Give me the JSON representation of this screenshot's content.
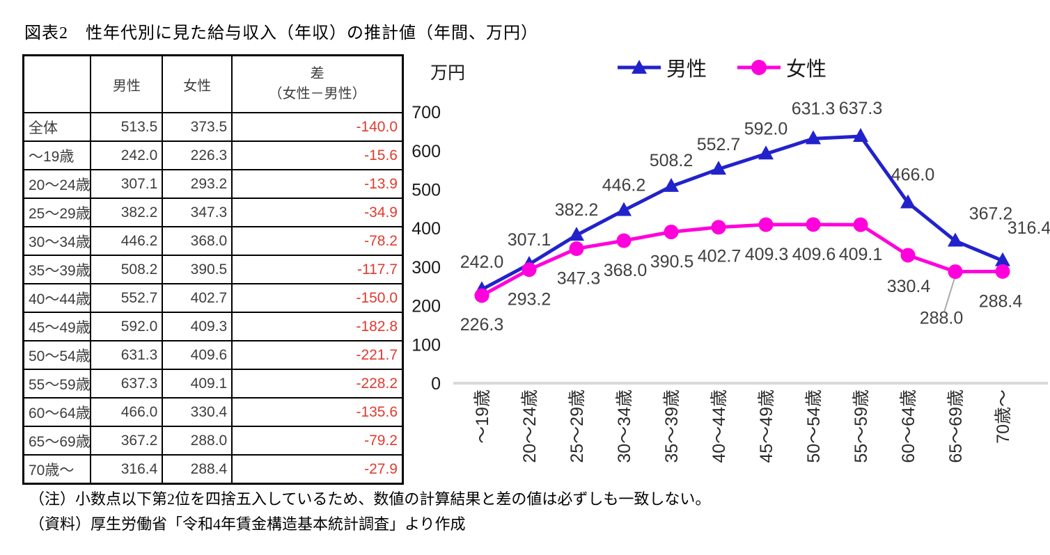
{
  "title": "図表2　性年代別に見た給与収入（年収）の推計値（年間、万円）",
  "colors": {
    "male": "#2222CC",
    "female": "#FF00DD",
    "diff_negative": "#E23A2E",
    "axis_line": "#D9D9D9",
    "leader_line": "#AAAAAA",
    "chart_text": "#404040",
    "table_text": "#3D3D3D"
  },
  "table": {
    "header": {
      "corner": "",
      "male": "男性",
      "female": "女性",
      "diff_line1": "差",
      "diff_line2": "（女性－男性）"
    },
    "rows": [
      {
        "label": "全体",
        "male": "513.5",
        "female": "373.5",
        "diff": "-140.0"
      },
      {
        "label": "～19歳",
        "male": "242.0",
        "female": "226.3",
        "diff": "-15.6"
      },
      {
        "label": "20～24歳",
        "male": "307.1",
        "female": "293.2",
        "diff": "-13.9"
      },
      {
        "label": "25～29歳",
        "male": "382.2",
        "female": "347.3",
        "diff": "-34.9"
      },
      {
        "label": "30～34歳",
        "male": "446.2",
        "female": "368.0",
        "diff": "-78.2"
      },
      {
        "label": "35～39歳",
        "male": "508.2",
        "female": "390.5",
        "diff": "-117.7"
      },
      {
        "label": "40～44歳",
        "male": "552.7",
        "female": "402.7",
        "diff": "-150.0"
      },
      {
        "label": "45～49歳",
        "male": "592.0",
        "female": "409.3",
        "diff": "-182.8"
      },
      {
        "label": "50～54歳",
        "male": "631.3",
        "female": "409.6",
        "diff": "-221.7"
      },
      {
        "label": "55～59歳",
        "male": "637.3",
        "female": "409.1",
        "diff": "-228.2"
      },
      {
        "label": "60～64歳",
        "male": "466.0",
        "female": "330.4",
        "diff": "-135.6"
      },
      {
        "label": "65～69歳",
        "male": "367.2",
        "female": "288.0",
        "diff": "-79.2"
      },
      {
        "label": "70歳～",
        "male": "316.4",
        "female": "288.4",
        "diff": "-27.9"
      }
    ]
  },
  "chart_data": {
    "type": "line",
    "ylabel": "万円",
    "ylim": [
      0,
      700
    ],
    "yticks": [
      0,
      100,
      200,
      300,
      400,
      500,
      600,
      700
    ],
    "grid": false,
    "legend_position": "top",
    "categories": [
      "～19歳",
      "20～24歳",
      "25～29歳",
      "30～34歳",
      "35～39歳",
      "40～44歳",
      "45～49歳",
      "50～54歳",
      "55～59歳",
      "60～64歳",
      "65～69歳",
      "70歳～"
    ],
    "series": [
      {
        "name": "男性",
        "marker": "triangle",
        "values": [
          242.0,
          307.1,
          382.2,
          446.2,
          508.2,
          552.7,
          592.0,
          631.3,
          637.3,
          466.0,
          367.2,
          316.4
        ],
        "labels": [
          "242.0",
          "307.1",
          "382.2",
          "446.2",
          "508.2",
          "552.7",
          "592.0",
          "631.3",
          "637.3",
          "466.0",
          "367.2",
          "316.4"
        ],
        "label_dx": [
          0,
          0,
          0,
          0,
          0,
          0,
          0,
          0,
          0,
          7,
          51,
          38
        ],
        "label_dy": [
          -31,
          -27,
          -28,
          -28,
          -29,
          -27,
          -28,
          -35,
          -32,
          -32,
          -31,
          -39
        ],
        "leader_index": -1
      },
      {
        "name": "女性",
        "marker": "circle",
        "values": [
          226.3,
          293.2,
          347.3,
          368.0,
          390.5,
          402.7,
          409.3,
          409.6,
          409.1,
          330.4,
          288.0,
          288.4
        ],
        "labels": [
          "226.3",
          "293.2",
          "347.3",
          "368.0",
          "390.5",
          "402.7",
          "409.3",
          "409.6",
          "409.1",
          "330.4",
          "288.0",
          "288.4"
        ],
        "label_dx": [
          0,
          0,
          3,
          2,
          1,
          1,
          1,
          1,
          0,
          1,
          -20,
          -3
        ],
        "label_dy": [
          50,
          51,
          51,
          51,
          51,
          50,
          51,
          51,
          51,
          53,
          75,
          51
        ],
        "leader_index": 10
      }
    ]
  },
  "notes": {
    "note1": "（注）小数点以下第2位を四捨五入しているため、数値の計算結果と差の値は必ずしも一致しない。",
    "note2": "（資料）厚生労働省「令和4年賃金構造基本統計調査」より作成"
  }
}
